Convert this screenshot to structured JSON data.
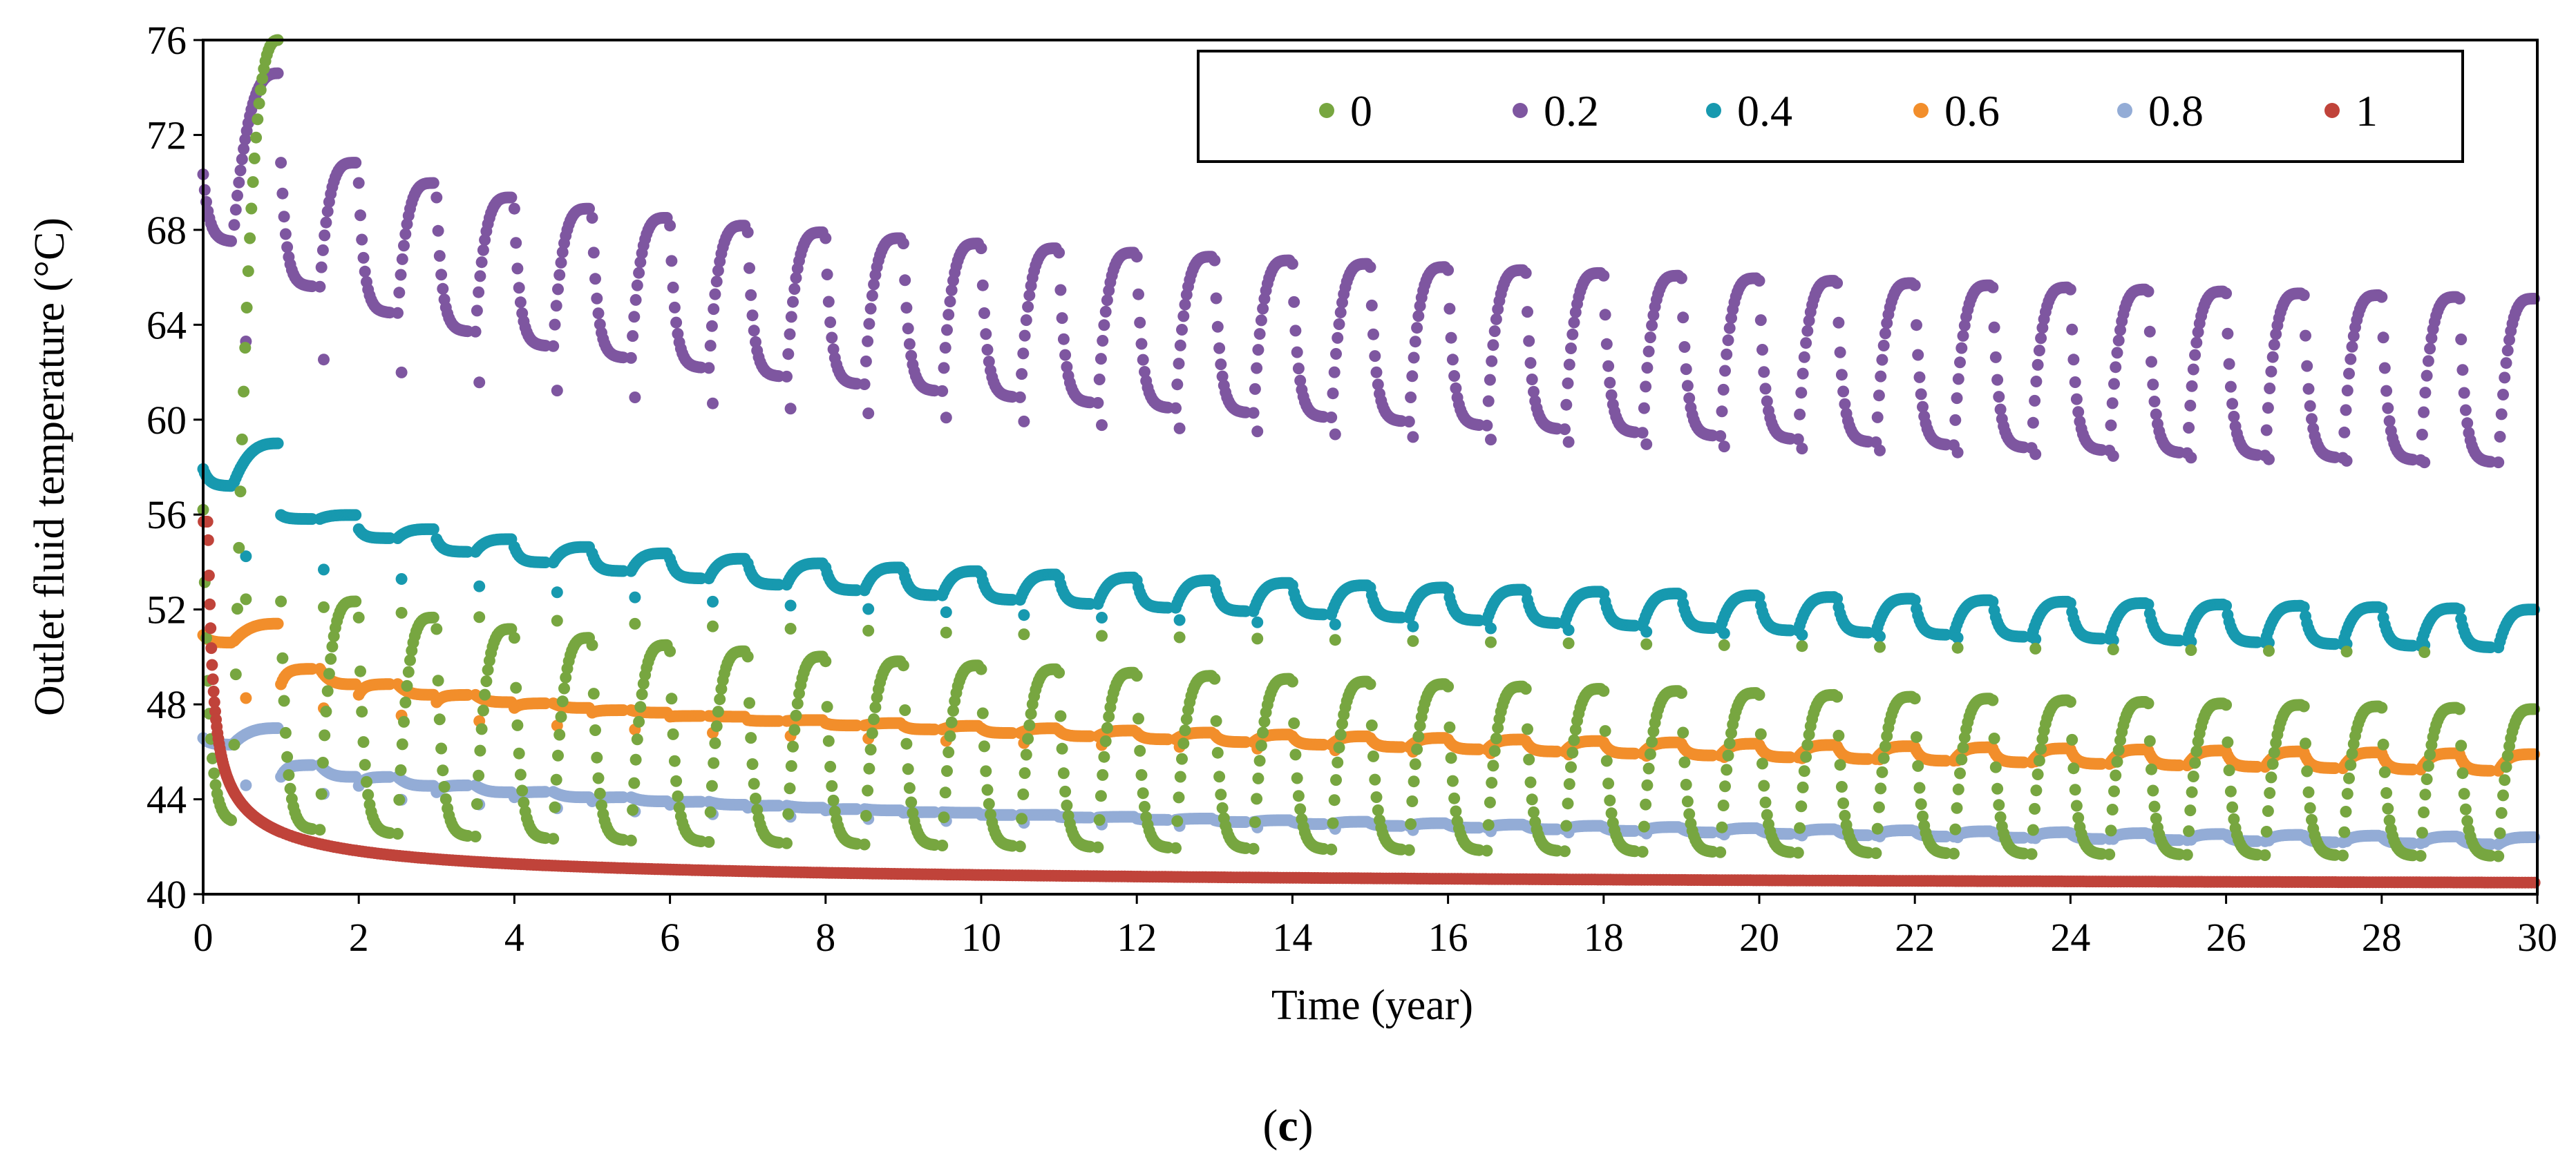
{
  "chart_data": {
    "type": "scatter",
    "title": "",
    "xlabel": "Time (year)",
    "ylabel": "Outlet fluid temperature (°C)",
    "xlim": [
      0,
      30
    ],
    "ylim": [
      40,
      76
    ],
    "x_ticks": [
      "0",
      "2",
      "4",
      "6",
      "8",
      "10",
      "12",
      "14",
      "16",
      "18",
      "20",
      "22",
      "24",
      "26",
      "28",
      "30"
    ],
    "y_ticks": [
      "40",
      "44",
      "48",
      "52",
      "56",
      "60",
      "64",
      "68",
      "72",
      "76"
    ],
    "legend_placement": "top-right",
    "caption": {
      "open": "(",
      "letter": "c",
      "close": ")"
    },
    "period_years": 1,
    "series": [
      {
        "name": "0",
        "color": "#77A640",
        "first_peak": 76.0,
        "min_start": 43.0,
        "min_end": 41.6,
        "max_start": 53.5,
        "max_end": 47.8,
        "dip_start": 53.0,
        "dip_end": 50.2
      },
      {
        "name": "0.2",
        "color": "#7E56A0",
        "first_peak": 74.6,
        "min_start": 67.5,
        "min_end": 58.2,
        "max_start": 72.3,
        "max_end": 65.1,
        "dip_start": 64.6,
        "dip_end": 58.2
      },
      {
        "name": "0.4",
        "color": "#1799AF",
        "first_peak": 59.0,
        "min_start": 57.2,
        "min_end": 50.4,
        "max_start": 57.0,
        "max_end": 52.0,
        "dip_start": 55.2,
        "dip_end": 50.5
      },
      {
        "name": "0.6",
        "color": "#F28E2B",
        "first_peak": 51.4,
        "min_start": 50.6,
        "min_end": 45.2,
        "max_start": 49.6,
        "max_end": 45.9,
        "dip_start": 49.0,
        "dip_end": 45.4
      },
      {
        "name": "0.8",
        "color": "#93ACD6",
        "first_peak": 47.0,
        "min_start": 46.3,
        "min_end": 42.1,
        "max_start": 45.6,
        "max_end": 42.4,
        "dip_start": 45.2,
        "dip_end": 42.2
      },
      {
        "name": "1",
        "color": "#C0433A",
        "initial": 55.7,
        "after_one_year": 42.9,
        "end_value": 40.1
      }
    ]
  }
}
